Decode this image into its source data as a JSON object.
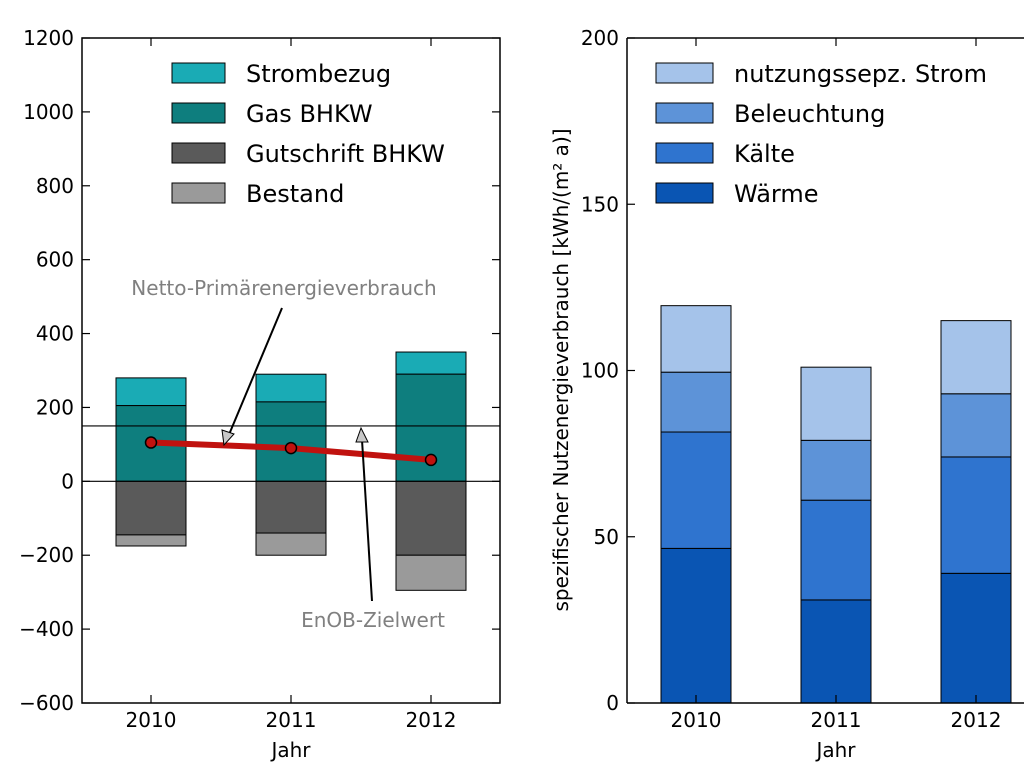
{
  "chart_data": [
    {
      "type": "bar",
      "stacked": true,
      "categories": [
        "2010",
        "2011",
        "2012"
      ],
      "xlabel": "Jahr",
      "ylabel": "",
      "ylim": [
        -600,
        1200
      ],
      "yticks": [
        1200,
        1000,
        800,
        600,
        400,
        200,
        0,
        -200,
        -400,
        -600
      ],
      "ytick_labels": [
        "1200",
        "1000",
        "800",
        "600",
        "400",
        "200",
        "0",
        "−200",
        "−400",
        "−600"
      ],
      "series": [
        {
          "name": "Strombezug",
          "color": "#1aabb5",
          "base": [
            205,
            215,
            290
          ],
          "values": [
            75,
            75,
            60
          ]
        },
        {
          "name": "Gas BHKW",
          "color": "#0e7e7e",
          "base": [
            0,
            0,
            0
          ],
          "values": [
            205,
            215,
            290
          ]
        },
        {
          "name": "Gutschrift BHKW",
          "color": "#5a5a5a",
          "base": [
            0,
            0,
            0
          ],
          "values": [
            -145,
            -140,
            -200
          ]
        },
        {
          "name": "Bestand",
          "color": "#9a9a9a",
          "base": [
            -145,
            -140,
            -200
          ],
          "values": [
            -30,
            -60,
            -95
          ]
        }
      ],
      "legend_order": [
        "Strombezug",
        "Gas BHKW",
        "Gutschrift BHKW",
        "Bestand"
      ],
      "legend_position": "top-right",
      "line": {
        "name": "Netto-Primärenergieverbrauch",
        "color": "#c0120f",
        "values": [
          105,
          90,
          58
        ]
      },
      "hlines": [
        {
          "value": 150,
          "label": "EnOB-Zielwert"
        },
        {
          "value": 0
        }
      ],
      "annotations": [
        "Netto-Primärenergieverbrauch",
        "EnOB-Zielwert"
      ]
    },
    {
      "type": "bar",
      "stacked": true,
      "categories": [
        "2010",
        "2011",
        "2012"
      ],
      "xlabel": "Jahr",
      "ylabel": "spezifischer Nutzenergieverbrauch [kWh/(m² a)]",
      "ylim": [
        0,
        200
      ],
      "yticks": [
        200,
        150,
        100,
        50,
        0
      ],
      "ytick_labels": [
        "200",
        "150",
        "100",
        "50",
        "0"
      ],
      "series": [
        {
          "name": "Wärme",
          "color": "#0a55b3",
          "values": [
            46.5,
            31,
            39
          ]
        },
        {
          "name": "Kälte",
          "color": "#2f74cf",
          "values": [
            35,
            30,
            35
          ]
        },
        {
          "name": "Beleuchtung",
          "color": "#5d93d8",
          "values": [
            18,
            18,
            19
          ]
        },
        {
          "name": "nutzungssepz. Strom",
          "color": "#a5c3ea",
          "values": [
            20,
            22,
            22
          ]
        }
      ],
      "legend_order": [
        "nutzungssepz. Strom",
        "Beleuchtung",
        "Kälte",
        "Wärme"
      ],
      "legend_position": "top-left"
    }
  ]
}
